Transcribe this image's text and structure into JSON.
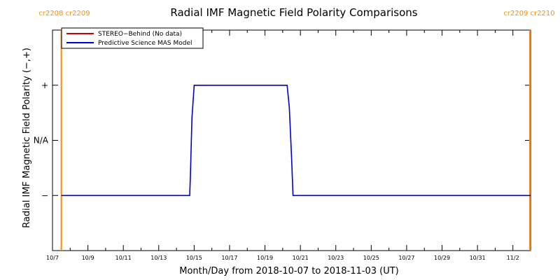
{
  "chart_data": {
    "type": "line",
    "title": "Radial IMF Magnetic Field Polarity Comparisons",
    "xlabel": "Month/Day from 2018-10-07 to 2018-11-03 (UT)",
    "ylabel": "Radial IMF Magnetic Field Polarity (−,+)",
    "x_range": [
      "2018-10-07",
      "2018-11-03"
    ],
    "x_tick_labels": [
      "10/7",
      "10/9",
      "10/11",
      "10/13",
      "10/15",
      "10/17",
      "10/19",
      "10/21",
      "10/23",
      "10/25",
      "10/27",
      "10/29",
      "10/31",
      "11/2"
    ],
    "x_tick_dates": [
      "2018-10-07",
      "2018-10-09",
      "2018-10-11",
      "2018-10-13",
      "2018-10-15",
      "2018-10-17",
      "2018-10-19",
      "2018-10-21",
      "2018-10-23",
      "2018-10-25",
      "2018-10-27",
      "2018-10-29",
      "2018-10-31",
      "2018-11-02"
    ],
    "y_tick_labels": [
      "+",
      "N/A",
      "−"
    ],
    "y_levels": [
      1,
      0,
      -1
    ],
    "ylim": [
      -2,
      2
    ],
    "legend_position": "top-left",
    "series": [
      {
        "name": "STEREO−Behind (No data)",
        "color": "#cc0000",
        "points": []
      },
      {
        "name": "Predictive Science MAS Model",
        "color": "#0000cc",
        "points": [
          [
            "2018-10-07T12:00",
            -1
          ],
          [
            "2018-10-14T18:00",
            -1
          ],
          [
            "2018-10-14T19:00",
            -0.6
          ],
          [
            "2018-10-14T21:00",
            0.4
          ],
          [
            "2018-10-15T00:00",
            1
          ],
          [
            "2018-10-20T06:00",
            1
          ],
          [
            "2018-10-20T09:00",
            0.6
          ],
          [
            "2018-10-20T12:00",
            -0.3
          ],
          [
            "2018-10-20T14:00",
            -1
          ],
          [
            "2018-11-03T00:00",
            -1
          ]
        ]
      }
    ],
    "carrington_markers": [
      {
        "label": "cr2208 cr2209",
        "date": "2018-10-07T12:00",
        "side": "left"
      },
      {
        "label": "cr2209 cr2210",
        "date": "2018-11-02T23:00",
        "side": "right"
      }
    ],
    "marker_color": "#ff8c00"
  }
}
